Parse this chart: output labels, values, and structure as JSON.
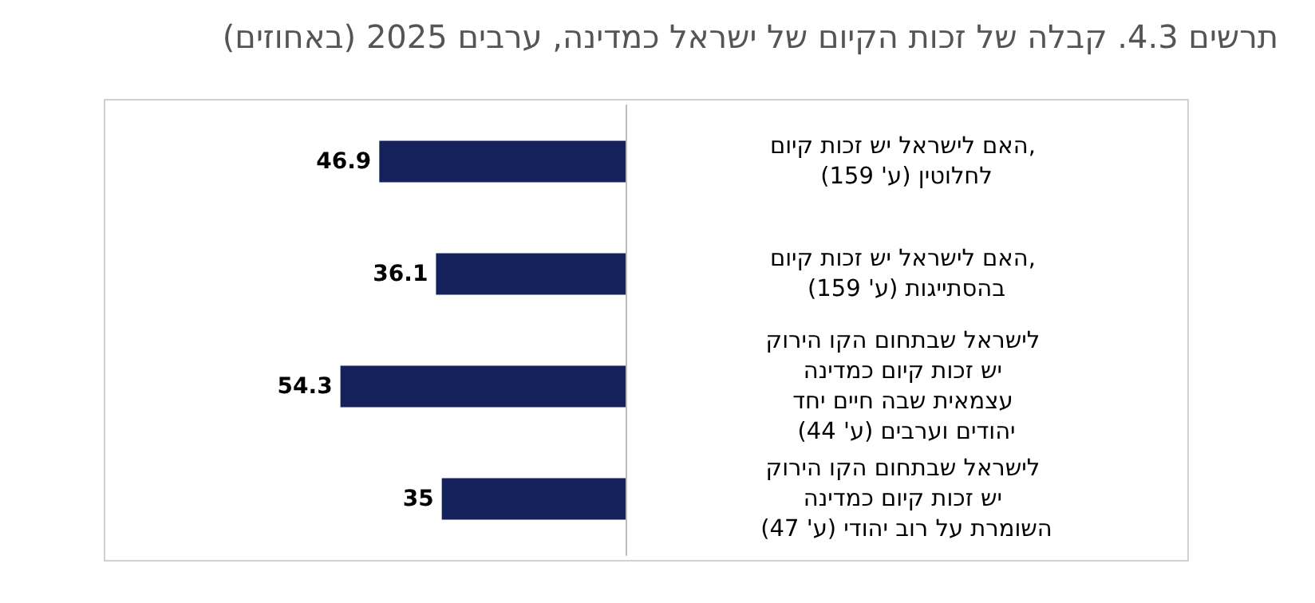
{
  "chart_data": {
    "type": "bar",
    "orientation": "horizontal",
    "title": "תרשים 4.3. קבלה של זכות הקיום של ישראל כמדינה, ערבים 2025 (באחוזים)",
    "categories": [
      "האם לישראל יש זכות קיום, לחלוטין (ע' 159)",
      "האם לישראל יש זכות קיום, בהסתייגות (ע' 159)",
      "לישראל שבתחום הקו הירוק יש זכות קיום כמדינה עצמאית שבה חיים יחד יהודים וערבים (ע' 44)",
      "לישראל שבתחום הקו הירוק יש זכות קיום כמדינה השומרת על רוב יהודי (ע' 47)"
    ],
    "values": [
      46.9,
      36.1,
      54.3,
      35
    ],
    "color": "#14215a",
    "data_labels": true
  }
}
